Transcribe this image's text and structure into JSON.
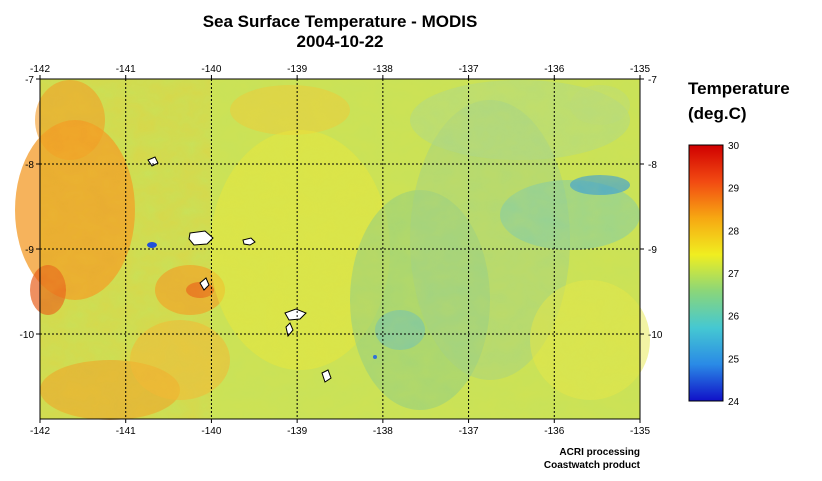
{
  "title": "Sea Surface Temperature - MODIS",
  "date": "2004-10-22",
  "colorbar": {
    "title_line1": "Temperature",
    "title_line2": "(deg.C)",
    "min": 24,
    "max": 30,
    "ticks": [
      "30",
      "29",
      "28",
      "27",
      "26",
      "25",
      "24"
    ],
    "colors": [
      "#1010c8",
      "#2a8ae6",
      "#45c8d2",
      "#8ad67a",
      "#f0ee20",
      "#f7a812",
      "#f24a12",
      "#d00000"
    ]
  },
  "map": {
    "lon_range": [
      -142,
      -135
    ],
    "lat_range": [
      -11,
      -7
    ],
    "lon_ticks": [
      "-142",
      "-141",
      "-140",
      "-139",
      "-138",
      "-137",
      "-136",
      "-135"
    ],
    "lat_ticks": [
      "-7",
      "-8",
      "-9",
      "-10"
    ],
    "gridlines": true
  },
  "credits": {
    "line1": "ACRI processing",
    "line2": "Coastwatch product"
  }
}
